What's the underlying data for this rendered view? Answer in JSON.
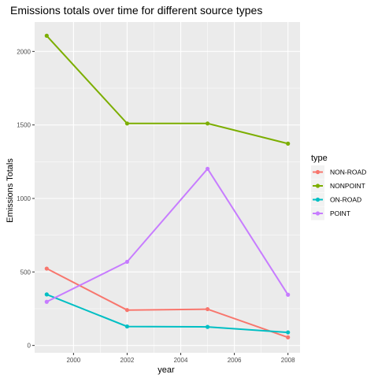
{
  "chart_data": {
    "type": "line",
    "title": "Emissions totals over time for different source types",
    "xlabel": "year",
    "ylabel": "Emissions Totals",
    "x": [
      1999,
      2002,
      2005,
      2008
    ],
    "x_ticks": [
      2000,
      2002,
      2004,
      2006,
      2008
    ],
    "y_ticks": [
      0,
      500,
      1000,
      1500,
      2000
    ],
    "xlim": [
      1998.55,
      2008.45
    ],
    "ylim": [
      -50,
      2200
    ],
    "grid": true,
    "legend": {
      "title": "type",
      "position": "right"
    },
    "series": [
      {
        "name": "NON-ROAD",
        "color": "#F8766D",
        "values": [
          523,
          241,
          247,
          55
        ]
      },
      {
        "name": "NONPOINT",
        "color": "#7CAE00",
        "values": [
          2107,
          1510,
          1510,
          1373
        ]
      },
      {
        "name": "ON-ROAD",
        "color": "#00BFC4",
        "values": [
          347,
          129,
          126,
          89
        ]
      },
      {
        "name": "POINT",
        "color": "#C77CFF",
        "values": [
          297,
          569,
          1202,
          345
        ]
      }
    ]
  }
}
